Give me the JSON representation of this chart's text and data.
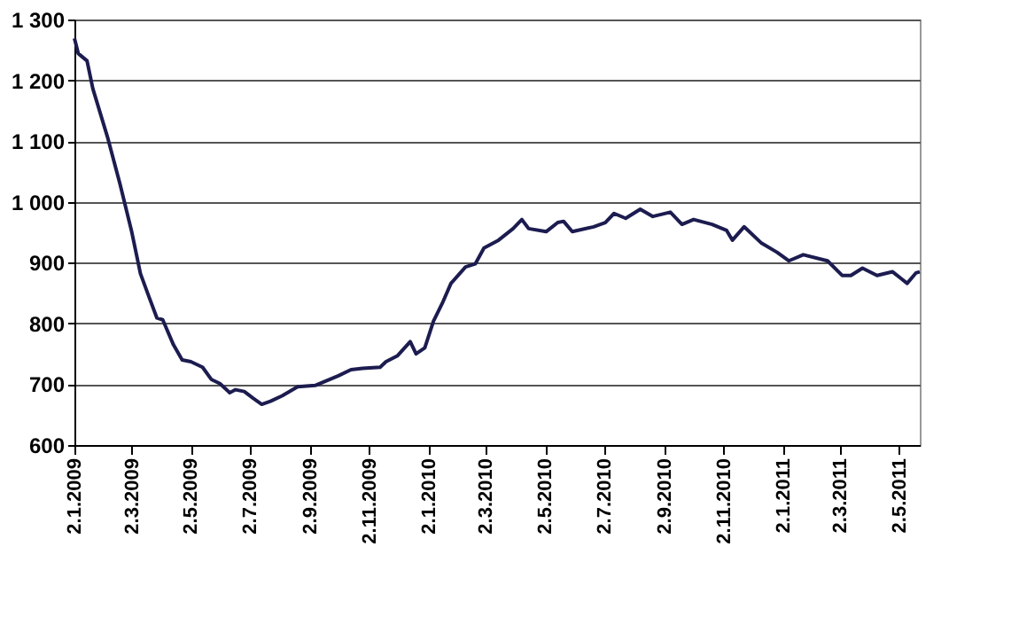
{
  "chart_data": {
    "type": "line",
    "xlim": [
      "2009-01-02",
      "2011-05-23"
    ],
    "ylim": [
      600,
      1300
    ],
    "xticks": [
      {
        "value": "2009-01-02",
        "label": "2.1.2009"
      },
      {
        "value": "2009-03-02",
        "label": "2.3.2009"
      },
      {
        "value": "2009-05-02",
        "label": "2.5.2009"
      },
      {
        "value": "2009-07-02",
        "label": "2.7.2009"
      },
      {
        "value": "2009-09-02",
        "label": "2.9.2009"
      },
      {
        "value": "2009-11-02",
        "label": "2.11.2009"
      },
      {
        "value": "2010-01-02",
        "label": "2.1.2010"
      },
      {
        "value": "2010-03-02",
        "label": "2.3.2010"
      },
      {
        "value": "2010-05-02",
        "label": "2.5.2010"
      },
      {
        "value": "2010-07-02",
        "label": "2.7.2010"
      },
      {
        "value": "2010-09-02",
        "label": "2.9.2010"
      },
      {
        "value": "2010-11-02",
        "label": "2.11.2010"
      },
      {
        "value": "2011-01-02",
        "label": "2.1.2011"
      },
      {
        "value": "2011-03-02",
        "label": "2.3.2011"
      },
      {
        "value": "2011-05-02",
        "label": "2.5.2011"
      }
    ],
    "yticks": [
      600,
      700,
      800,
      900,
      {
        "value": 1000,
        "label": "1 000"
      },
      {
        "value": 1100,
        "label": "1 100"
      },
      {
        "value": 1200,
        "label": "1 200"
      },
      {
        "value": 1300,
        "label": "1 300"
      }
    ],
    "grid": "y",
    "legend": false,
    "marker": "none",
    "line_style": "solid",
    "series": [
      {
        "color": "#1c1c50",
        "x": [
          "2009-01-02",
          "2009-01-06",
          "2009-01-15",
          "2009-01-21",
          "2009-02-05",
          "2009-02-18",
          "2009-03-02",
          "2009-03-11",
          "2009-03-20",
          "2009-03-28",
          "2009-04-03",
          "2009-04-14",
          "2009-04-23",
          "2009-05-02",
          "2009-05-14",
          "2009-05-23",
          "2009-06-01",
          "2009-06-11",
          "2009-06-17",
          "2009-06-26",
          "2009-07-05",
          "2009-07-14",
          "2009-07-23",
          "2009-08-04",
          "2009-08-20",
          "2009-09-07",
          "2009-09-19",
          "2009-10-01",
          "2009-10-14",
          "2009-10-26",
          "2009-11-13",
          "2009-11-19",
          "2009-12-01",
          "2009-12-14",
          "2009-12-20",
          "2009-12-29",
          "2010-01-07",
          "2010-01-16",
          "2010-01-25",
          "2010-02-09",
          "2010-02-19",
          "2010-02-28",
          "2010-03-15",
          "2010-03-30",
          "2010-04-08",
          "2010-04-15",
          "2010-05-03",
          "2010-05-15",
          "2010-05-21",
          "2010-05-30",
          "2010-06-21",
          "2010-07-03",
          "2010-07-12",
          "2010-07-24",
          "2010-08-08",
          "2010-08-21",
          "2010-09-08",
          "2010-09-20",
          "2010-10-02",
          "2010-10-21",
          "2010-11-05",
          "2010-11-11",
          "2010-11-23",
          "2010-12-11",
          "2010-12-27",
          "2011-01-08",
          "2011-01-23",
          "2011-02-17",
          "2011-03-04",
          "2011-03-13",
          "2011-03-25",
          "2011-04-09",
          "2011-04-25",
          "2011-05-10",
          "2011-05-19",
          "2011-05-23"
        ],
        "values": [
          1269,
          1244,
          1232,
          1186,
          1107,
          1029,
          951,
          882,
          843,
          809,
          806,
          765,
          740,
          737,
          728,
          708,
          701,
          686,
          691,
          688,
          677,
          667,
          672,
          681,
          696,
          698,
          706,
          714,
          724,
          726,
          728,
          737,
          747,
          770,
          750,
          760,
          804,
          833,
          866,
          893,
          898,
          924,
          937,
          956,
          971,
          956,
          951,
          966,
          968,
          951,
          959,
          966,
          981,
          973,
          988,
          976,
          983,
          963,
          971,
          963,
          953,
          937,
          959,
          932,
          917,
          903,
          913,
          903,
          879,
          879,
          891,
          879,
          885,
          866,
          883,
          885
        ]
      }
    ]
  }
}
